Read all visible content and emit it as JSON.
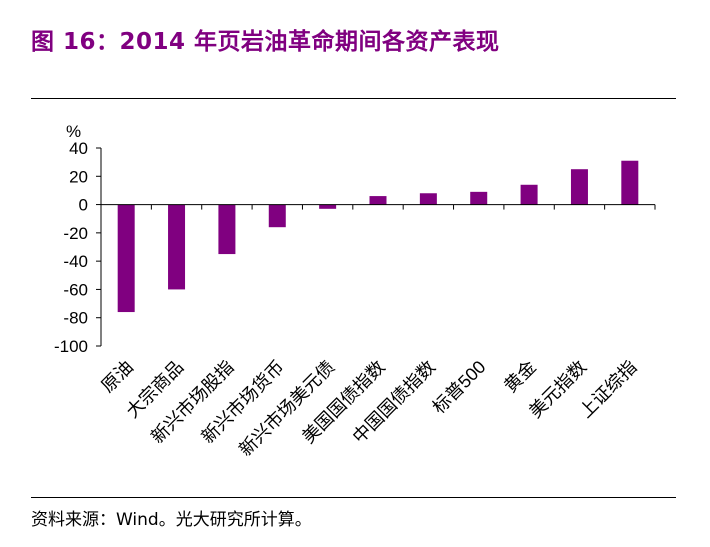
{
  "figure": {
    "title": "图 16：2014 年页岩油革命期间各资产表现",
    "source": "资料来源：Wind。光大研究所计算。"
  },
  "colors": {
    "bar": "#800080",
    "title": "#800080",
    "axis": "#000000"
  },
  "chart_data": {
    "type": "bar",
    "title": "",
    "xlabel": "",
    "ylabel": "%",
    "ylim": [
      -100,
      40
    ],
    "yticks": [
      40,
      20,
      0,
      -20,
      -40,
      -60,
      -80,
      -100
    ],
    "grid": false,
    "categories": [
      "原油",
      "大宗商品",
      "新兴市场股指",
      "新兴市场货币",
      "新兴市场美元债",
      "美国国债指数",
      "中国国债指数",
      "标普500",
      "黄金",
      "美元指数",
      "上证综指"
    ],
    "values": [
      -76,
      -60,
      -35,
      -16,
      -3,
      6,
      8,
      9,
      14,
      25,
      31
    ]
  }
}
